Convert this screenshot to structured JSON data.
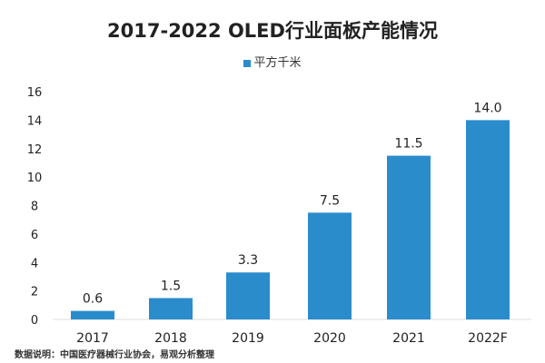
{
  "chart_data": {
    "type": "bar",
    "title": "2017-2022 OLED行业面板产能情况",
    "categories": [
      "2017",
      "2018",
      "2019",
      "2020",
      "2021",
      "2022F"
    ],
    "series": [
      {
        "name": "平方千米",
        "values": [
          0.6,
          1.5,
          3.3,
          7.5,
          11.5,
          14.0
        ],
        "labels": [
          "0.6",
          "1.5",
          "3.3",
          "7.5",
          "11.5",
          "14.0"
        ]
      }
    ],
    "ylim": [
      0,
      16
    ],
    "yticks": [
      "0",
      "2",
      "4",
      "6",
      "8",
      "10",
      "12",
      "14",
      "16"
    ],
    "grid": false,
    "legend": "top",
    "color": "#2b8ccc"
  },
  "source": "数据说明：中国医疗器械行业协会，易观分析整理"
}
